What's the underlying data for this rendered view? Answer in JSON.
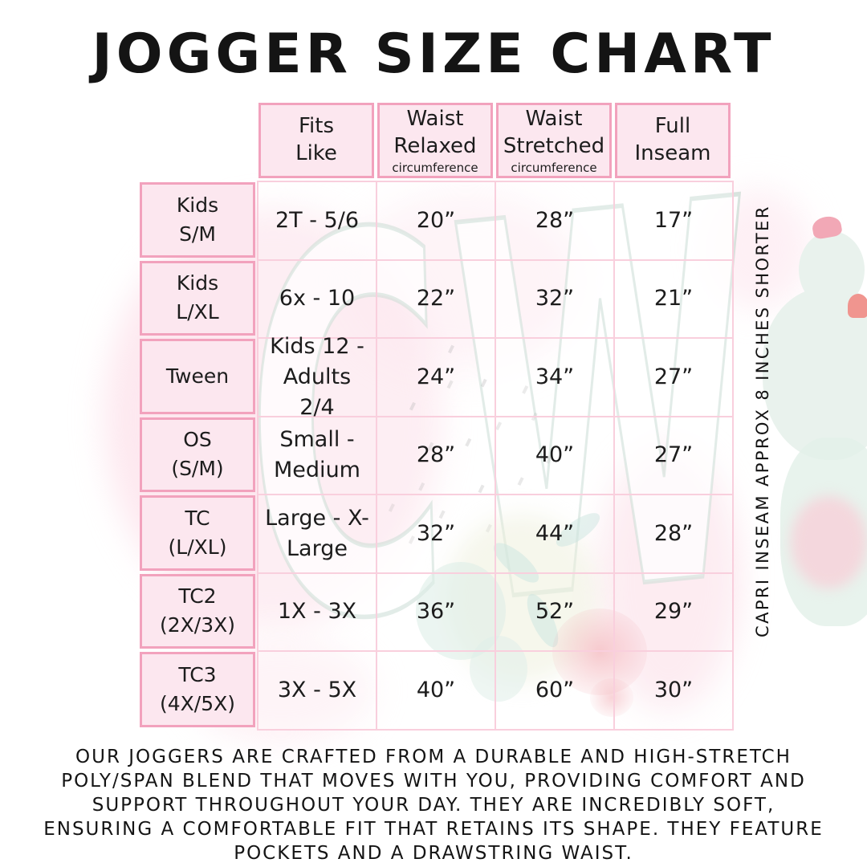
{
  "title": "JOGGER SIZE CHART",
  "watermark_text": "CW",
  "table": {
    "columns": [
      {
        "line1": "Fits",
        "line2": "Like",
        "sub": ""
      },
      {
        "line1": "Waist",
        "line2": "Relaxed",
        "sub": "circumference"
      },
      {
        "line1": "Waist",
        "line2": "Stretched",
        "sub": "circumference"
      },
      {
        "line1": "Full",
        "line2": "Inseam",
        "sub": ""
      }
    ],
    "rows": [
      {
        "label1": "Kids",
        "label2": "S/M",
        "fits": "2T - 5/6",
        "relaxed": "20”",
        "stretched": "28”",
        "inseam": "17”"
      },
      {
        "label1": "Kids",
        "label2": "L/XL",
        "fits": "6x - 10",
        "relaxed": "22”",
        "stretched": "32”",
        "inseam": "21”"
      },
      {
        "label1": "Tween",
        "label2": "",
        "fits": "Kids 12 - Adults 2/4",
        "relaxed": "24”",
        "stretched": "34”",
        "inseam": "27”"
      },
      {
        "label1": "OS",
        "label2": "(S/M)",
        "fits": "Small - Medium",
        "relaxed": "28”",
        "stretched": "40”",
        "inseam": "27”"
      },
      {
        "label1": "TC",
        "label2": "(L/XL)",
        "fits": "Large - X-Large",
        "relaxed": "32”",
        "stretched": "44”",
        "inseam": "28”"
      },
      {
        "label1": "TC2",
        "label2": "(2X/3X)",
        "fits": "1X - 3X",
        "relaxed": "36”",
        "stretched": "52”",
        "inseam": "29”"
      },
      {
        "label1": "TC3",
        "label2": "(4X/5X)",
        "fits": "3X - 5X",
        "relaxed": "40”",
        "stretched": "60”",
        "inseam": "30”"
      }
    ]
  },
  "side_note": "CAPRI INSEAM APPROX 8 INCHES SHORTER",
  "description_lines": [
    "OUR JOGGERS ARE CRAFTED FROM A DURABLE AND HIGH-STRETCH",
    "POLY/SPAN BLEND THAT MOVES WITH YOU, PROVIDING COMFORT AND",
    "SUPPORT THROUGHOUT YOUR DAY. THEY ARE INCREDIBLY SOFT,",
    "ENSURING A COMFORTABLE FIT THAT RETAINS ITS SHAPE. THEY FEATURE",
    "POCKETS AND A DRAWSTRING WAIST."
  ],
  "colors": {
    "cell_pink": "#fce7ef",
    "border_pink": "#f2a2bd",
    "grid_pink": "#f9cfdd",
    "text": "#141414",
    "watermark_teal": "#cfe3da",
    "cactus_green": "#e9f2ed",
    "flower_red": "#ec828c",
    "flower_pink": "#f2a8b6"
  },
  "chart_data": {
    "type": "table",
    "title": "JOGGER SIZE CHART",
    "columns": [
      "",
      "Fits Like",
      "Waist Relaxed circumference",
      "Waist Stretched circumference",
      "Full Inseam"
    ],
    "rows": [
      [
        "Kids S/M",
        "2T - 5/6",
        "20”",
        "28”",
        "17”"
      ],
      [
        "Kids L/XL",
        "6x - 10",
        "22”",
        "32”",
        "21”"
      ],
      [
        "Tween",
        "Kids 12 - Adults 2/4",
        "24”",
        "34”",
        "27”"
      ],
      [
        "OS (S/M)",
        "Small - Medium",
        "28”",
        "40”",
        "27”"
      ],
      [
        "TC (L/XL)",
        "Large - X-Large",
        "32”",
        "44”",
        "28”"
      ],
      [
        "TC2 (2X/3X)",
        "1X - 3X",
        "36”",
        "52”",
        "29”"
      ],
      [
        "TC3 (4X/5X)",
        "3X - 5X",
        "40”",
        "60”",
        "30”"
      ]
    ],
    "notes": [
      "CAPRI INSEAM APPROX 8 INCHES SHORTER"
    ]
  }
}
